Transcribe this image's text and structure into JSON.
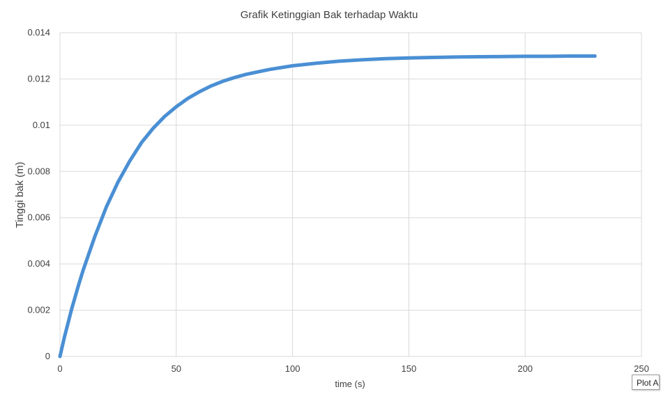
{
  "chart_data": {
    "type": "line",
    "title": "Grafik Ketinggian Bak terhadap Waktu",
    "xlabel": "time (s)",
    "ylabel": "Tinggi bak (m)",
    "xlim": [
      0,
      250
    ],
    "ylim": [
      0,
      0.014
    ],
    "x_ticks": [
      0,
      50,
      100,
      150,
      200,
      250
    ],
    "y_ticks": [
      0,
      0.002,
      0.004,
      0.006,
      0.008,
      0.01,
      0.012,
      0.014
    ],
    "x_tick_labels": [
      "0",
      "50",
      "100",
      "150",
      "200",
      "250"
    ],
    "y_tick_labels": [
      "0",
      "0.002",
      "0.004",
      "0.006",
      "0.008",
      "0.01",
      "0.012",
      "0.014"
    ],
    "grid": true,
    "legend": "none",
    "series": [
      {
        "color": "#4a8fd4",
        "x": [
          0,
          2,
          5,
          8,
          10,
          15,
          20,
          25,
          30,
          35,
          40,
          45,
          50,
          55,
          60,
          65,
          70,
          75,
          80,
          90,
          100,
          110,
          120,
          130,
          140,
          150,
          160,
          170,
          180,
          190,
          200,
          210,
          220,
          230
        ],
        "y": [
          0,
          0.00087,
          0.00204,
          0.00309,
          0.00374,
          0.00519,
          0.00648,
          0.00755,
          0.00845,
          0.00924,
          0.00986,
          0.01038,
          0.0108,
          0.01116,
          0.01145,
          0.0117,
          0.0119,
          0.01206,
          0.0122,
          0.01241,
          0.01257,
          0.01268,
          0.01277,
          0.01283,
          0.01288,
          0.01291,
          0.01293,
          0.01295,
          0.01296,
          0.01297,
          0.01298,
          0.01298,
          0.01299,
          0.01299
        ]
      }
    ]
  },
  "tooltip": {
    "label": "Plot Area"
  }
}
